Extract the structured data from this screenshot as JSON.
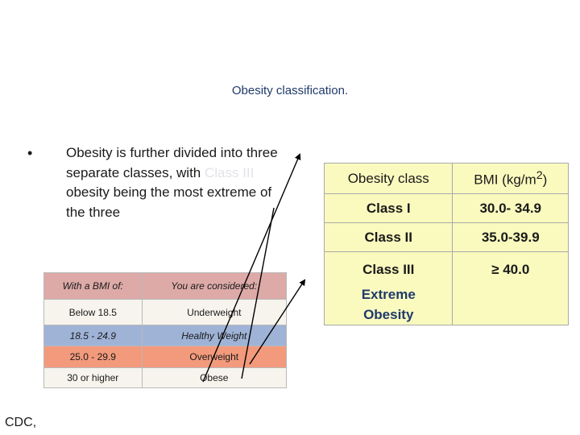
{
  "title": "Obesity classification.",
  "bullet": {
    "symbol": "•",
    "text_before": "Obesity is further divided into three separate classes, with ",
    "text_faint": "Class III",
    "text_after": " obesity being the most extreme of the three"
  },
  "bmi_table": {
    "headers": [
      "With a BMI of:",
      "You are considered:"
    ],
    "rows": [
      [
        "Below 18.5",
        "Underweight"
      ],
      [
        "18.5 - 24.9",
        "Healthy Weight"
      ],
      [
        "25.0 - 29.9",
        "Overweight"
      ],
      [
        "30 or higher",
        "Obese"
      ]
    ]
  },
  "class_table": {
    "header_class": "Obesity class",
    "header_bmi_prefix": "BMI (kg/m",
    "header_bmi_sup": "2",
    "header_bmi_suffix": ")",
    "rows": [
      [
        "Class I",
        "30.0- 34.9"
      ],
      [
        "Class II",
        "35.0-39.9"
      ]
    ],
    "last_row": {
      "class": "Class III",
      "bmi": "≥ 40.0",
      "extreme_line1": "Extreme",
      "extreme_line2": "Obesity"
    }
  },
  "source": "CDC,",
  "colors": {
    "title": "#1f3a6b",
    "arrow": "#000000",
    "bmi_header": "#ddaaa8",
    "healthy": "#9fb3d7",
    "overweight": "#f39a7c",
    "class_bg": "#fafabf"
  }
}
